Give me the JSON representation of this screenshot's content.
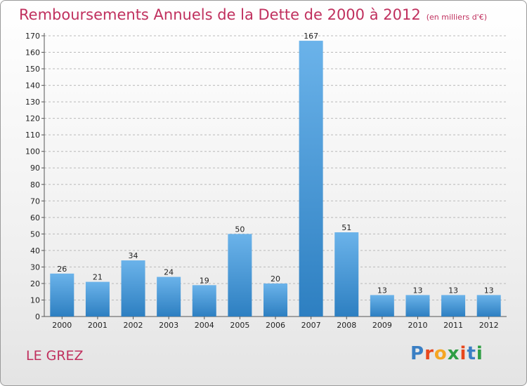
{
  "title": "Remboursements Annuels de la Dette de 2000 à 2012",
  "unit_note": "(en milliers d'€)",
  "commune": "LE GREZ",
  "logo": {
    "text": "Proxiti",
    "letters": [
      "P",
      "r",
      "o",
      "x",
      "i",
      "t",
      "i"
    ],
    "colors": [
      "#3a7fc4",
      "#e8471d",
      "#f5a623",
      "#2e9e44",
      "#e8471d",
      "#3a7fc4",
      "#2e9e44"
    ]
  },
  "colors": {
    "bar_light": "#6bb3ea",
    "bar_dark": "#2d7fc1",
    "title": "#c0305e",
    "grid": "#b9b9b9"
  },
  "chart_data": {
    "type": "bar",
    "categories": [
      "2000",
      "2001",
      "2002",
      "2003",
      "2004",
      "2005",
      "2006",
      "2007",
      "2008",
      "2009",
      "2010",
      "2011",
      "2012"
    ],
    "values": [
      26,
      21,
      34,
      24,
      19,
      50,
      20,
      167,
      51,
      13,
      13,
      13,
      13
    ],
    "ylim": [
      0,
      170
    ],
    "yticks": [
      0,
      10,
      20,
      30,
      40,
      50,
      60,
      70,
      80,
      90,
      100,
      110,
      120,
      130,
      140,
      150,
      160,
      170
    ],
    "grid": true,
    "xlabel": "",
    "ylabel": ""
  }
}
